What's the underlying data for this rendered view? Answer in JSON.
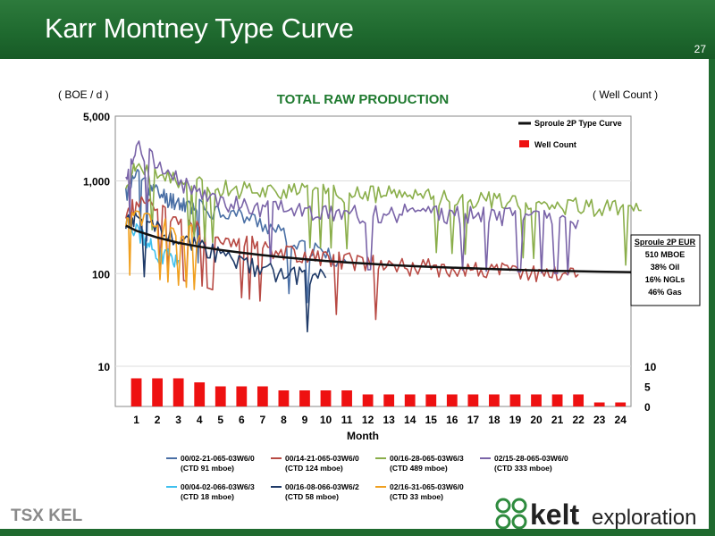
{
  "slide": {
    "title": "Karr Montney Type Curve",
    "page_number": "27"
  },
  "chart_data": {
    "type": "line",
    "title": "TOTAL RAW PRODUCTION",
    "ylabel": "( BOE / d )",
    "y2label": "( Well Count )",
    "xlabel": "Month",
    "yscale": "log",
    "ylim": [
      10,
      5000
    ],
    "y_ticks": [
      "5,000",
      "1,000",
      "100",
      "10"
    ],
    "y2_ticks": [
      "10",
      "5",
      "0"
    ],
    "y2lim": [
      0,
      10
    ],
    "categories": [
      "1",
      "2",
      "3",
      "4",
      "5",
      "6",
      "7",
      "8",
      "9",
      "10",
      "11",
      "12",
      "13",
      "14",
      "15",
      "16",
      "17",
      "18",
      "19",
      "20",
      "21",
      "22",
      "23",
      "24"
    ],
    "well_count": [
      7,
      7,
      7,
      6,
      5,
      5,
      5,
      4,
      4,
      4,
      4,
      3,
      3,
      3,
      3,
      3,
      3,
      3,
      3,
      3,
      3,
      3,
      1,
      1
    ],
    "type_curve": {
      "name": "Sproule 2P Type Curve",
      "color": "#111111",
      "x": [
        0.5,
        1,
        2,
        3,
        4,
        5,
        6,
        7,
        8,
        9,
        10,
        11,
        12,
        13,
        14,
        15,
        16,
        17,
        18,
        19,
        20,
        21,
        22,
        23,
        24,
        25
      ],
      "y": [
        330,
        290,
        245,
        215,
        195,
        180,
        168,
        158,
        150,
        143,
        137,
        132,
        128,
        124,
        121,
        118,
        116,
        114,
        112,
        110,
        108,
        107,
        106,
        105,
        104,
        103
      ]
    },
    "legend": {
      "type_curve": "Sproule 2P Type Curve",
      "well_count": "Well Count",
      "placement": "top-right"
    },
    "well_series": [
      {
        "name": "00/02-21-065-03W6/0",
        "ctd": "(CTD 91 mboe)",
        "color": "#4a6fa5",
        "months": 11,
        "x": [
          0.5,
          1,
          1.5,
          2,
          2.5,
          3,
          3.5,
          4,
          5,
          6,
          7,
          8,
          9,
          10,
          11
        ],
        "y": [
          700,
          1200,
          900,
          750,
          650,
          600,
          550,
          520,
          480,
          420,
          350,
          260,
          200,
          160,
          130
        ]
      },
      {
        "name": "00/14-21-065-03W6/0",
        "ctd": "(CTD 124 mboe)",
        "color": "#b84a44",
        "months": 22,
        "x": [
          0.5,
          1,
          2,
          3,
          4,
          5,
          6,
          7,
          8,
          9,
          10,
          11,
          12,
          13,
          14,
          15,
          16,
          17,
          18,
          19,
          20,
          21,
          22
        ],
        "y": [
          400,
          600,
          480,
          350,
          300,
          250,
          220,
          200,
          170,
          160,
          150,
          140,
          130,
          125,
          120,
          118,
          115,
          110,
          108,
          105,
          102,
          100,
          98
        ]
      },
      {
        "name": "00/16-28-065-03W6/3",
        "ctd": "(CTD 489 mboe)",
        "color": "#8aae4a",
        "months": 25,
        "x": [
          0.5,
          1,
          2,
          3,
          4,
          5,
          6,
          7,
          8,
          9,
          10,
          11,
          12,
          13,
          14,
          15,
          16,
          17,
          18,
          19,
          20,
          21,
          22,
          23,
          24,
          25
        ],
        "y": [
          900,
          1500,
          1100,
          1000,
          900,
          850,
          820,
          800,
          780,
          760,
          760,
          740,
          730,
          720,
          700,
          680,
          660,
          640,
          620,
          600,
          580,
          560,
          540,
          520,
          500,
          480
        ]
      },
      {
        "name": "02/15-28-065-03W6/0",
        "ctd": "(CTD 333 mboe)",
        "color": "#7a64a8",
        "months": 22,
        "x": [
          0.5,
          1,
          2,
          3,
          4,
          5,
          6,
          7,
          8,
          9,
          10,
          11,
          12,
          13,
          14,
          15,
          16,
          17,
          18,
          19,
          20,
          21,
          22
        ],
        "y": [
          1100,
          2500,
          1500,
          1000,
          700,
          600,
          550,
          520,
          500,
          480,
          460,
          450,
          440,
          450,
          460,
          450,
          440,
          430,
          420,
          420,
          410,
          400,
          380
        ]
      },
      {
        "name": "00/04-02-066-03W6/3",
        "ctd": "(CTD 18 mboe)",
        "color": "#3fc0ee",
        "months": 3,
        "x": [
          0.5,
          1,
          1.5,
          2,
          2.5,
          3
        ],
        "y": [
          400,
          300,
          220,
          170,
          150,
          140
        ]
      },
      {
        "name": "00/16-08-066-03W6/2",
        "ctd": "(CTD 58 mboe)",
        "color": "#1f3a68",
        "months": 10,
        "x": [
          0.5,
          1,
          2,
          3,
          4,
          5,
          6,
          7,
          8,
          9,
          10
        ],
        "y": [
          350,
          420,
          300,
          250,
          200,
          160,
          130,
          110,
          100,
          95,
          90
        ]
      },
      {
        "name": "02/16-31-065-03W6/0",
        "ctd": "(CTD 33 mboe)",
        "color": "#f0a020",
        "months": 4,
        "x": [
          0.5,
          1,
          2,
          3,
          4
        ],
        "y": [
          350,
          450,
          350,
          300,
          260
        ]
      }
    ],
    "eur_box": {
      "title": "Sproule 2P EUR",
      "lines": [
        "510 MBOE",
        "38% Oil",
        "16% NGLs",
        "46% Gas"
      ]
    },
    "grid": false
  },
  "footer": {
    "tsx_logo": "TSX KEL",
    "brand_word": "kelt",
    "brand_sub": "exploration"
  }
}
